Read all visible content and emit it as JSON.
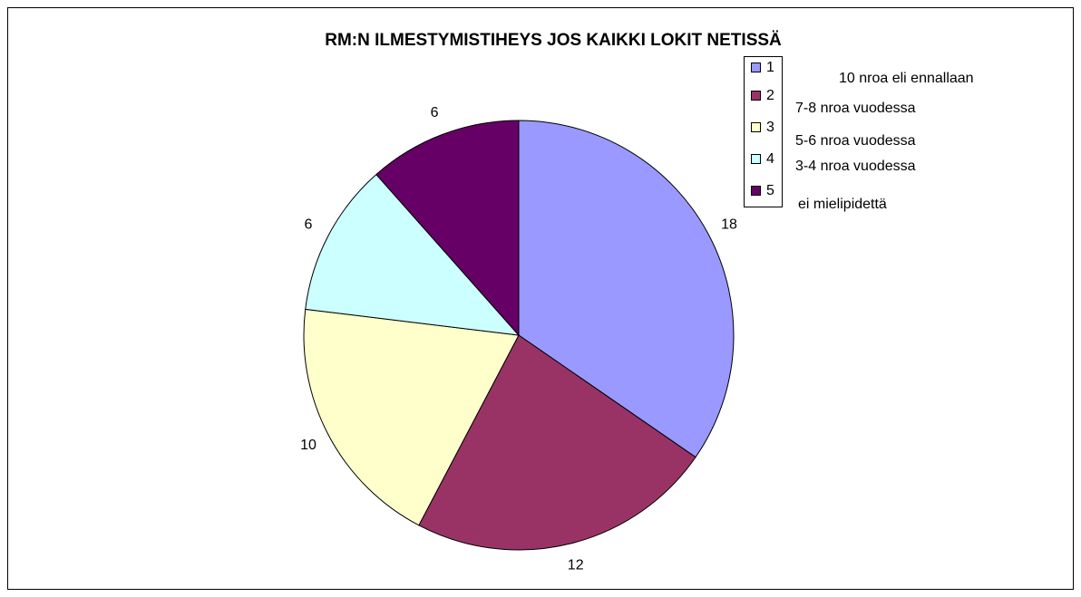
{
  "chart_data": {
    "type": "pie",
    "title": "RM:N ILMESTYMISTIHEYS JOS KAIKKI LOKIT NETISSÄ",
    "categories": [
      "1",
      "2",
      "3",
      "4",
      "5"
    ],
    "descriptions": [
      "10 nroa eli ennallaan",
      "7-8 nroa vuodessa",
      "5-6 nroa vuodessa",
      "3-4 nroa vuodessa",
      "ei mielipidettä"
    ],
    "values": [
      18,
      12,
      10,
      6,
      6
    ],
    "colors": [
      "#9999ff",
      "#993366",
      "#ffffcc",
      "#ccffff",
      "#660066"
    ]
  }
}
